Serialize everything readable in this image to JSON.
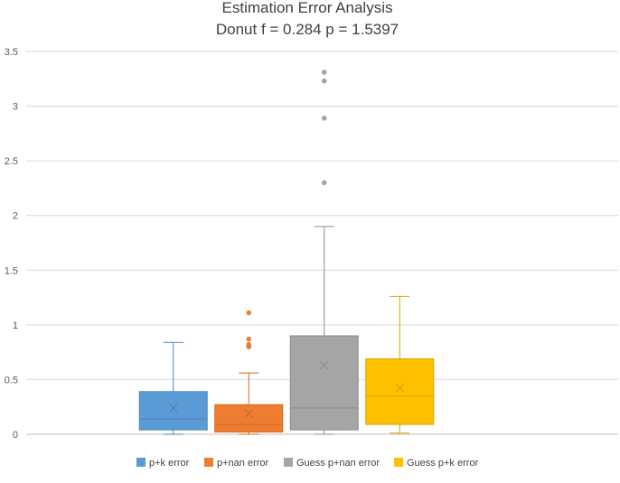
{
  "chart_data": {
    "type": "box",
    "title": "Estimation Error Analysis",
    "subtitle": "Donut f = 0.284 p = 1.5397",
    "xlabel": "",
    "ylabel": "",
    "ylim": [
      0,
      3.5
    ],
    "yticks": [
      0,
      0.5,
      1,
      1.5,
      2,
      2.5,
      3,
      3.5
    ],
    "ytick_labels": [
      "0",
      "0.5",
      "1",
      "1.5",
      "2",
      "2.5",
      "3",
      "3.5"
    ],
    "grid": true,
    "legend_position": "bottom",
    "series": [
      {
        "name": "p+k error",
        "color": "#5b9bd5",
        "edge": "#4a86bf",
        "min": 0.0,
        "q1": 0.04,
        "median": 0.14,
        "q3": 0.39,
        "max": 0.84,
        "mean": 0.24,
        "outliers": []
      },
      {
        "name": "p+nan error",
        "color": "#ed7d31",
        "edge": "#d46a1f",
        "min": 0.0,
        "q1": 0.02,
        "median": 0.09,
        "q3": 0.27,
        "max": 0.56,
        "mean": 0.19,
        "outliers": [
          0.8,
          0.82,
          0.87,
          1.11
        ]
      },
      {
        "name": "Guess p+nan error",
        "color": "#a5a5a5",
        "edge": "#8c8c8c",
        "min": 0.0,
        "q1": 0.04,
        "median": 0.24,
        "q3": 0.9,
        "max": 1.9,
        "mean": 0.63,
        "outliers": [
          2.3,
          2.89,
          3.23,
          3.31
        ]
      },
      {
        "name": "Guess p+k error",
        "color": "#ffc000",
        "edge": "#d9a300",
        "min": 0.01,
        "q1": 0.09,
        "median": 0.35,
        "q3": 0.69,
        "max": 1.26,
        "mean": 0.42,
        "outliers": []
      }
    ]
  }
}
